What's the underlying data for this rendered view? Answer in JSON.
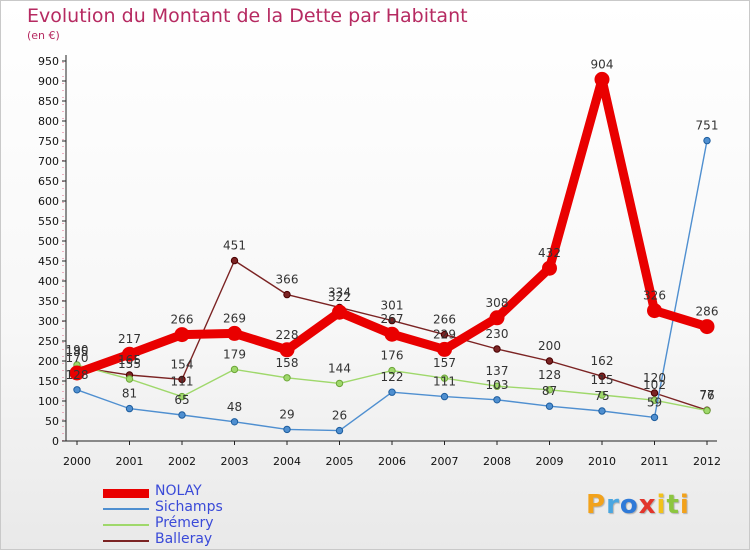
{
  "header": {
    "title": "Evolution du Montant de la Dette par Habitant",
    "subtitle": "(en €)"
  },
  "logo": {
    "letters": [
      "P",
      "r",
      "o",
      "x",
      "i",
      "t",
      "i"
    ],
    "colors": [
      "#f2a21b",
      "#4aa6e0",
      "#2f7ad8",
      "#e2352b",
      "#f2c21b",
      "#8cc63f",
      "#f2a21b"
    ]
  },
  "chart_data": {
    "type": "line",
    "title": "Evolution du Montant de la Dette par Habitant",
    "subtitle": "(en €)",
    "xlabel": "",
    "ylabel": "",
    "x": [
      "2000",
      "2001",
      "2002",
      "2003",
      "2004",
      "2005",
      "2006",
      "2007",
      "2008",
      "2009",
      "2010",
      "2011",
      "2012"
    ],
    "ylim": [
      0,
      950
    ],
    "yticks": [
      0,
      50,
      100,
      150,
      200,
      250,
      300,
      350,
      400,
      450,
      500,
      550,
      600,
      650,
      700,
      750,
      800,
      850,
      900,
      950
    ],
    "grid": false,
    "legend_position": "bottom-left",
    "series": [
      {
        "name": "NOLAY",
        "color": "#e90000",
        "values": [
          170,
          217,
          266,
          269,
          228,
          322,
          267,
          229,
          308,
          432,
          904,
          326,
          286
        ],
        "labels": [
          "170",
          "217",
          "266",
          "269",
          "228",
          "322",
          "267",
          "229",
          "308",
          "432",
          "904",
          "326",
          "286"
        ]
      },
      {
        "name": "Sichamps",
        "color": "#4f8fd0",
        "values": [
          128,
          81,
          65,
          48,
          29,
          26,
          122,
          111,
          103,
          87,
          75,
          59,
          751
        ],
        "labels": [
          "128",
          "81",
          "65",
          "48",
          "29",
          "26",
          "122",
          "111",
          "103",
          "87",
          "75",
          "59",
          "751"
        ]
      },
      {
        "name": "Prémery",
        "color": "#9fd86b",
        "values": [
          190,
          155,
          111,
          179,
          158,
          144,
          176,
          157,
          137,
          128,
          115,
          102,
          76
        ],
        "labels": [
          "190",
          "155",
          "111",
          "179",
          "158",
          "144",
          "176",
          "157",
          "137",
          "128",
          "115",
          "102",
          "76"
        ]
      },
      {
        "name": "Balleray",
        "color": "#7b2323",
        "values": [
          185,
          165,
          154,
          451,
          366,
          334,
          301,
          266,
          230,
          200,
          162,
          120,
          77
        ],
        "labels": [
          "185",
          "165",
          "154",
          "451",
          "366",
          "334",
          "301",
          "266",
          "230",
          "200",
          "162",
          "120",
          "77"
        ]
      }
    ]
  }
}
